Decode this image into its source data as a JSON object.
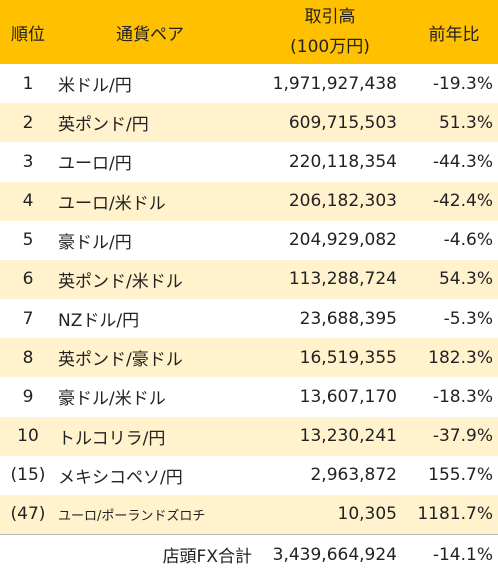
{
  "header": {
    "rank": "順位",
    "pair": "通貨ペア",
    "volume": [
      "取引高",
      "(100万円)"
    ],
    "change": "前年比"
  },
  "rows": [
    [
      "1",
      "米ドル/円",
      "1,971,927,438",
      "-19.3%"
    ],
    [
      "2",
      "英ポンド/円",
      "609,715,503",
      "51.3%"
    ],
    [
      "3",
      "ユーロ/円",
      "220,118,354",
      "-44.3%"
    ],
    [
      "4",
      "ユーロ/米ドル",
      "206,182,303",
      "-42.4%"
    ],
    [
      "5",
      "豪ドル/円",
      "204,929,082",
      "-4.6%"
    ],
    [
      "6",
      "英ポンド/米ドル",
      "113,288,724",
      "54.3%"
    ],
    [
      "7",
      "NZドル/円",
      "23,688,395",
      "-5.3%"
    ],
    [
      "8",
      "英ポンド/豪ドル",
      "16,519,355",
      "182.3%"
    ],
    [
      "9",
      "豪ドル/米ドル",
      "13,607,170",
      "-18.3%"
    ],
    [
      "10",
      "トルコリラ/円",
      "13,230,241",
      "-37.9%"
    ],
    [
      "(15)",
      "メキシコペソ/円",
      "2,963,872",
      "155.7%"
    ],
    [
      "(47)",
      "ユーロ/ポーランドズロチ",
      "10,305",
      "1181.7%"
    ]
  ],
  "total": {
    "label": "店頭FX合計",
    "volume": "3,439,664,924",
    "change": "-14.1%"
  }
}
